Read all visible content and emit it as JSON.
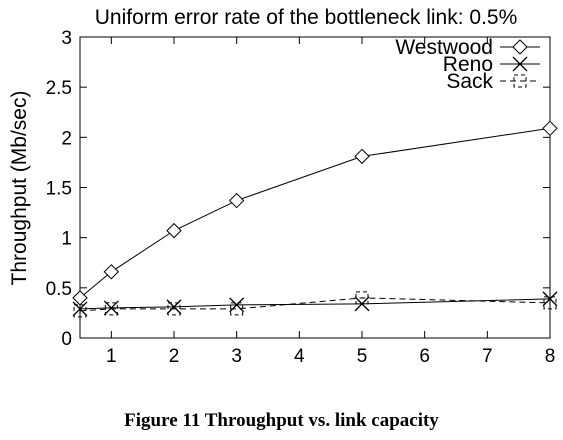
{
  "caption": "Figure 11 Throughput vs. link capacity",
  "chart_data": {
    "type": "line",
    "title": "Uniform error rate of the bottleneck link: 0.5%",
    "xlabel": "",
    "ylabel": "Throughput (Mb/sec)",
    "xlim": [
      0.5,
      8
    ],
    "ylim": [
      0,
      3
    ],
    "xticks": [
      1,
      2,
      3,
      4,
      5,
      6,
      7,
      8
    ],
    "yticks": [
      0,
      0.5,
      1,
      1.5,
      2,
      2.5,
      3
    ],
    "ytick_labels": [
      "0",
      "0.5",
      "1",
      "1.5",
      "2",
      "2.5",
      "3"
    ],
    "legend_position": "top-right",
    "grid": false,
    "series": [
      {
        "name": "Westwood",
        "marker": "diamond",
        "style": "solid",
        "x": [
          0.5,
          1,
          2,
          3,
          5,
          8
        ],
        "y": [
          0.4,
          0.66,
          1.07,
          1.37,
          1.81,
          2.09
        ]
      },
      {
        "name": "Reno",
        "marker": "x",
        "style": "solid",
        "x": [
          0.5,
          1,
          2,
          3,
          5,
          8
        ],
        "y": [
          0.29,
          0.3,
          0.31,
          0.33,
          0.34,
          0.39
        ]
      },
      {
        "name": "Sack",
        "marker": "square",
        "style": "dashed",
        "x": [
          0.5,
          1,
          2,
          3,
          5,
          8
        ],
        "y": [
          0.27,
          0.29,
          0.29,
          0.29,
          0.4,
          0.35
        ]
      }
    ]
  }
}
